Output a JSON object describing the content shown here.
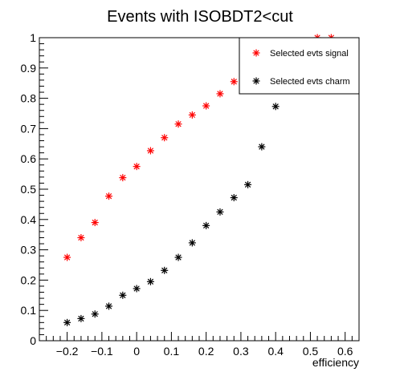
{
  "chart_data": {
    "type": "scatter",
    "title": "Events with ISOBDT2<cut",
    "xlabel": "efficiency",
    "ylabel": "",
    "xlim": [
      -0.28,
      0.64
    ],
    "ylim": [
      0,
      1
    ],
    "x_ticks": [
      {
        "value": -0.2,
        "label": "−0.2"
      },
      {
        "value": -0.1,
        "label": "−0.1"
      },
      {
        "value": 0,
        "label": "0"
      },
      {
        "value": 0.1,
        "label": "0.1"
      },
      {
        "value": 0.2,
        "label": "0.2"
      },
      {
        "value": 0.3,
        "label": "0.3"
      },
      {
        "value": 0.4,
        "label": "0.4"
      },
      {
        "value": 0.5,
        "label": "0.5"
      },
      {
        "value": 0.6,
        "label": "0.6"
      }
    ],
    "y_ticks": [
      {
        "value": 0,
        "label": "0"
      },
      {
        "value": 0.1,
        "label": "0.1"
      },
      {
        "value": 0.2,
        "label": "0.2"
      },
      {
        "value": 0.3,
        "label": "0.3"
      },
      {
        "value": 0.4,
        "label": "0.4"
      },
      {
        "value": 0.5,
        "label": "0.5"
      },
      {
        "value": 0.6,
        "label": "0.6"
      },
      {
        "value": 0.7,
        "label": "0.7"
      },
      {
        "value": 0.8,
        "label": "0.8"
      },
      {
        "value": 0.9,
        "label": "0.9"
      },
      {
        "value": 1,
        "label": "1"
      }
    ],
    "grid": false,
    "legend_position": "top-right",
    "series": [
      {
        "name": "Selected evts signal",
        "color": "#ff0000",
        "marker": "asterisk",
        "x": [
          -0.2,
          -0.16,
          -0.12,
          -0.08,
          -0.04,
          0.0,
          0.04,
          0.08,
          0.12,
          0.16,
          0.2,
          0.24,
          0.28,
          0.52,
          0.56
        ],
        "y": [
          0.275,
          0.34,
          0.39,
          0.477,
          0.538,
          0.575,
          0.627,
          0.67,
          0.715,
          0.745,
          0.775,
          0.815,
          0.855,
          1.0,
          1.0
        ]
      },
      {
        "name": "Selected evts charm",
        "color": "#000000",
        "marker": "asterisk",
        "x": [
          -0.2,
          -0.16,
          -0.12,
          -0.08,
          -0.04,
          0.0,
          0.04,
          0.08,
          0.12,
          0.16,
          0.2,
          0.24,
          0.28,
          0.32,
          0.36,
          0.4
        ],
        "y": [
          0.06,
          0.073,
          0.088,
          0.114,
          0.15,
          0.172,
          0.195,
          0.232,
          0.275,
          0.323,
          0.38,
          0.425,
          0.472,
          0.515,
          0.64,
          0.773
        ]
      }
    ]
  }
}
